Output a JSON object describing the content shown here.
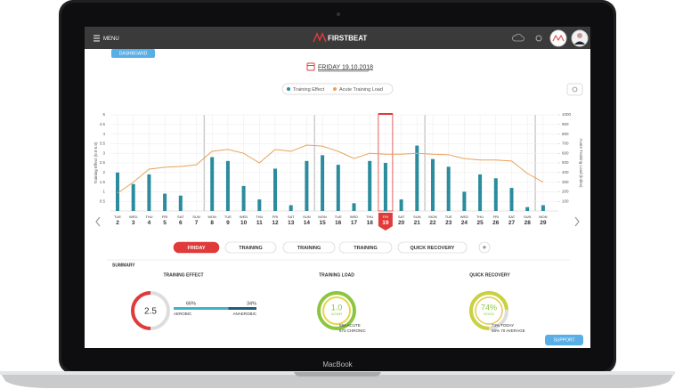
{
  "header": {
    "menu": "MENU",
    "brand": "FIRSTBEAT"
  },
  "tab": "DASHBOARD",
  "date": "FRIDAY 19.10.2018",
  "chart_data": {
    "type": "bar",
    "categories": [
      "TUE",
      "WED",
      "THU",
      "FRI",
      "SAT",
      "SUN",
      "MON",
      "TUE",
      "WED",
      "THU",
      "FRI",
      "SAT",
      "SUN",
      "MON",
      "TUE",
      "WED",
      "THU",
      "FRI",
      "SAT",
      "SUN",
      "MON",
      "TUE",
      "WED",
      "THU",
      "FRI",
      "SAT",
      "SUN",
      "MON"
    ],
    "days": [
      2,
      3,
      4,
      5,
      6,
      7,
      8,
      9,
      10,
      11,
      12,
      13,
      14,
      15,
      16,
      17,
      18,
      19,
      20,
      21,
      22,
      23,
      24,
      25,
      26,
      27,
      28,
      29
    ],
    "selected": 19,
    "ylabel": "Training Effect (0.0-5.0)",
    "y2label": "Acute Training Load (index)",
    "ylim": [
      0,
      5
    ],
    "yticks": [
      0.5,
      1,
      1.5,
      2,
      2.5,
      3,
      3.5,
      4,
      4.5,
      5
    ],
    "y2lim": [
      0,
      1000
    ],
    "y2ticks": [
      100,
      200,
      300,
      400,
      500,
      600,
      700,
      800,
      900,
      1000
    ],
    "grid": true,
    "series": [
      {
        "name": "Training Effect",
        "color": "#2a8c9c",
        "values": [
          2.0,
          1.4,
          1.9,
          0.9,
          0.8,
          0,
          2.8,
          2.6,
          1.3,
          0.6,
          2.2,
          0.3,
          2.6,
          2.9,
          2.4,
          0.4,
          2.6,
          2.5,
          0.6,
          3.4,
          2.7,
          2.3,
          1.0,
          1.9,
          1.7,
          1.2,
          0.2,
          0.3
        ]
      },
      {
        "name": "Acute Training Load",
        "color": "#e8a25a",
        "axis": "y2",
        "values": [
          185,
          300,
          435,
          455,
          463,
          480,
          620,
          640,
          600,
          500,
          640,
          620,
          685,
          675,
          620,
          545,
          600,
          590,
          590,
          600,
          590,
          585,
          545,
          530,
          530,
          520,
          390,
          300
        ]
      }
    ]
  },
  "buttons": [
    "FRIDAY",
    "TRAINING",
    "TRAINING",
    "TRAINING",
    "QUICK RECOVERY",
    "+"
  ],
  "summary": {
    "title": "SUMMARY",
    "training_effect": {
      "title": "TRAINING EFFECT",
      "value": 2.5,
      "aerobic": {
        "value": 66,
        "label": "66%"
      },
      "anaerobic": {
        "value": 34,
        "label": "34%"
      },
      "aerobic_label": "AEROBIC",
      "anaerobic_label": "ANAEROBIC"
    },
    "training_load": {
      "title": "TRAINING LOAD",
      "value": "1.0",
      "unit": "ACWR",
      "acute": "594 ACUTE",
      "chronic": "673 CHRONIC"
    },
    "quick_recovery": {
      "title": "QUICK RECOVERY",
      "value": {
        "value": 74,
        "label": "74%"
      },
      "status": "GOOD",
      "today": "74% TODAY",
      "average": "68% 70 AVERAGE"
    }
  },
  "support": "SUPPORT",
  "device": "MacBook"
}
